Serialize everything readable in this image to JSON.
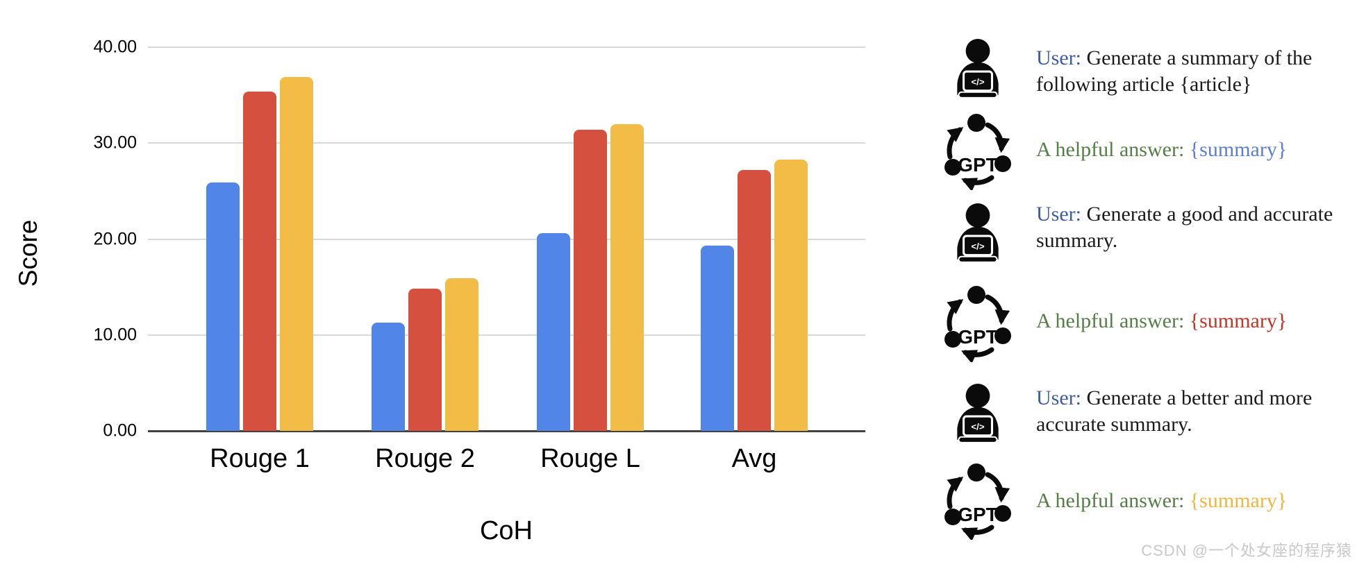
{
  "chart_data": {
    "type": "bar",
    "title": "",
    "xlabel": "CoH",
    "ylabel": "Score",
    "categories": [
      "Rouge 1",
      "Rouge 2",
      "Rouge L",
      "Avg"
    ],
    "series": [
      {
        "name": "series-blue",
        "color": "#5285E8",
        "values": [
          25.9,
          11.3,
          20.6,
          19.3
        ]
      },
      {
        "name": "series-red",
        "color": "#D5503F",
        "values": [
          35.4,
          14.8,
          31.4,
          27.2
        ]
      },
      {
        "name": "series-yellow",
        "color": "#F2BC47",
        "values": [
          36.9,
          15.9,
          32.0,
          28.3
        ]
      }
    ],
    "ylim": [
      0,
      40
    ],
    "yticks": [
      {
        "value": 0,
        "label": "0.00"
      },
      {
        "value": 10,
        "label": "10.00"
      },
      {
        "value": 20,
        "label": "20.00"
      },
      {
        "value": 30,
        "label": "30.00"
      },
      {
        "value": 40,
        "label": "40.00"
      }
    ],
    "grid": true,
    "legend": "none"
  },
  "panel": {
    "colors": {
      "user": "#3C5BA8",
      "body": "#1B1B1B",
      "answer": "#567D46",
      "summary_blue": "#5B7DD8",
      "summary_red": "#C13526",
      "summary_yellow": "#F0B53C"
    },
    "gpt_icon_label": "GPT",
    "user_icon_code": "</>",
    "rows": [
      {
        "icon": "user",
        "segments": [
          {
            "text": "User:",
            "color": "user"
          },
          {
            "text": " Generate a summary of the following article {article}",
            "color": "body"
          }
        ]
      },
      {
        "icon": "gpt",
        "segments": [
          {
            "text": "A helpful answer: ",
            "color": "answer"
          },
          {
            "text": "{summary}",
            "color": "summary_blue"
          }
        ]
      },
      {
        "icon": "user",
        "segments": [
          {
            "text": "User:",
            "color": "user"
          },
          {
            "text": " Generate a good and accurate summary.",
            "color": "body"
          }
        ]
      },
      {
        "icon": "gpt",
        "segments": [
          {
            "text": "A helpful answer: ",
            "color": "answer"
          },
          {
            "text": "{summary}",
            "color": "summary_red"
          }
        ]
      },
      {
        "icon": "user",
        "segments": [
          {
            "text": "User:",
            "color": "user"
          },
          {
            "text": " Generate a better and more accurate summary.",
            "color": "body"
          }
        ]
      },
      {
        "icon": "gpt",
        "segments": [
          {
            "text": "A helpful answer: ",
            "color": "answer"
          },
          {
            "text": "{summary}",
            "color": "summary_yellow"
          }
        ]
      }
    ]
  },
  "watermark": "CSDN @一个处女座的程序猿"
}
